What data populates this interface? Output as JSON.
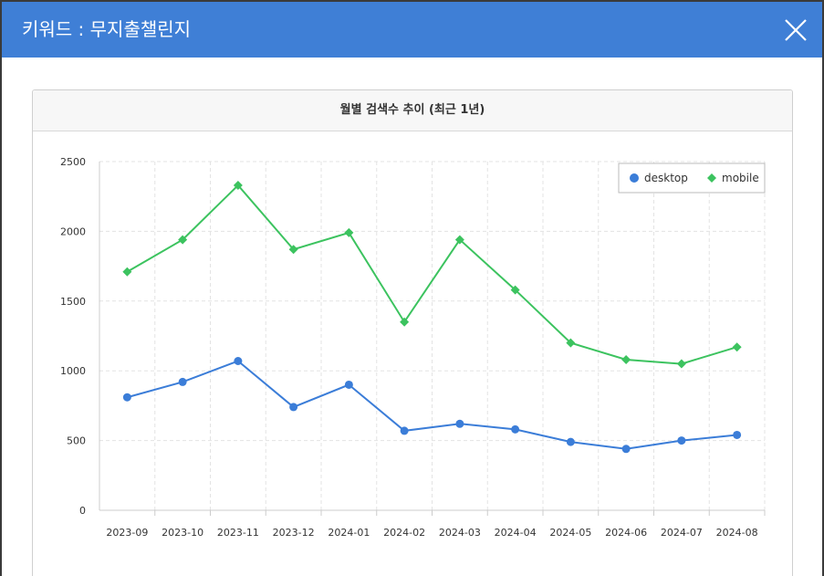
{
  "modal": {
    "title": "키워드 : 무지출챌린지",
    "close_icon": "close-icon"
  },
  "panel": {
    "title": "월별 검색수 추이 (최근 1년)"
  },
  "colors": {
    "header_bg": "#3f7fd6",
    "desktop": "#3b7dd8",
    "mobile": "#3cc35f"
  },
  "chart_data": {
    "type": "line",
    "title": "월별 검색수 추이 (최근 1년)",
    "categories": [
      "2023-09",
      "2023-10",
      "2023-11",
      "2023-12",
      "2024-01",
      "2024-02",
      "2024-03",
      "2024-04",
      "2024-05",
      "2024-06",
      "2024-07",
      "2024-08"
    ],
    "series": [
      {
        "name": "desktop",
        "marker": "circle",
        "color": "#3b7dd8",
        "values": [
          810,
          920,
          1070,
          740,
          900,
          570,
          620,
          580,
          490,
          440,
          500,
          540
        ]
      },
      {
        "name": "mobile",
        "marker": "diamond",
        "color": "#3cc35f",
        "values": [
          1710,
          1940,
          2330,
          1870,
          1990,
          1350,
          1940,
          1580,
          1200,
          1080,
          1050,
          1170
        ]
      }
    ],
    "ylim": [
      0,
      2500
    ],
    "yticks": [
      0,
      500,
      1000,
      1500,
      2000,
      2500
    ],
    "grid": true,
    "legend": "top-right"
  }
}
